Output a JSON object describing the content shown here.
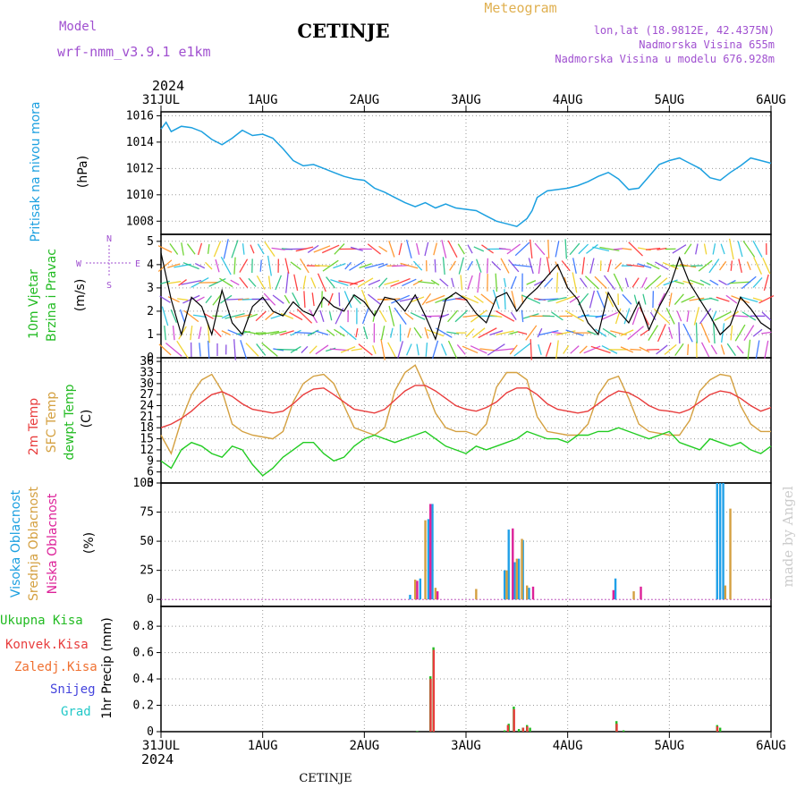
{
  "header": {
    "model_label": "Model",
    "model_name": "wrf-nmm_v3.9.1  e1km",
    "title": "CETINJE",
    "product": "Meteogram",
    "coords": "lon,lat (18.9812E, 42.4375N)",
    "elevation": "Nadmorska Visina 655m",
    "model_elevation": "Nadmorska Visina u modelu 676.928m",
    "year_top": "2024",
    "year_bottom": "2024",
    "footer": "CETINJE",
    "watermark": "made by Angel"
  },
  "x_axis": {
    "ticks": [
      "31JUL",
      "1AUG",
      "2AUG",
      "3AUG",
      "4AUG",
      "5AUG",
      "6AUG"
    ],
    "range_days": [
      0,
      6
    ]
  },
  "colors": {
    "pressure": "#1ca0e0",
    "temp2m": "#e83c3c",
    "sfc_temp": "#d4a040",
    "dewpt": "#22cc22",
    "high_cloud": "#20a0e8",
    "mid_cloud": "#d4a040",
    "low_cloud": "#dd2299",
    "total_precip": "#22bb22",
    "conv_precip": "#e83c3c",
    "freezing": "#f07030",
    "snow": "#4444dd",
    "hail": "#22c8c8",
    "ylabel_blue": "#1ca0e0",
    "ylabel_green": "#22bb22",
    "ylabel_red": "#e83c3c",
    "ylabel_orange": "#d4a040",
    "ylabel_magenta": "#dd2299",
    "header_purple": "#a050d0",
    "header_gold": "#e0b050"
  },
  "panels": {
    "pressure": {
      "ylabel": "Pritisak na nivou mora",
      "unit": "(hPa)",
      "ticks": [
        "1008",
        "1010",
        "1012",
        "1014",
        "1016"
      ]
    },
    "wind": {
      "ylabel1": "10m Vjetar",
      "ylabel2": "Brzina i Pravac",
      "unit": "(m/s)",
      "ticks": [
        "0",
        "1",
        "2",
        "3",
        "4",
        "5"
      ],
      "compass": {
        "n": "N",
        "s": "S",
        "w": "W",
        "e": "E"
      }
    },
    "temperature": {
      "ylabel1": "2m Temp",
      "ylabel2": "SFC Temp",
      "ylabel3": "dewpt Temp",
      "unit": "(C)",
      "ticks": [
        "3",
        "6",
        "9",
        "12",
        "15",
        "18",
        "21",
        "24",
        "27",
        "30",
        "33",
        "36"
      ]
    },
    "clouds": {
      "ylabel1": "Visoka Oblacnost",
      "ylabel2": "Srednja Oblacnost",
      "ylabel3": "Niska Oblacnost",
      "unit": "(%)",
      "ticks": [
        "0",
        "25",
        "50",
        "75",
        "100"
      ]
    },
    "precip": {
      "legend": [
        "Ukupna Kisa",
        "Konvek.Kisa",
        "Zaledj.Kisa",
        "Snijeg",
        "Grad"
      ],
      "ylabel": "1hr Precip (mm)",
      "ticks": [
        "0",
        "0.2",
        "0.4",
        "0.6",
        "0.8"
      ]
    }
  },
  "chart_data": [
    {
      "type": "line",
      "title": "Pritisak na nivou mora",
      "ylabel": "(hPa)",
      "ylim": [
        1007,
        1016.3
      ],
      "series": [
        {
          "name": "Pritisak na nivou mora",
          "x": [
            0,
            0.05,
            0.1,
            0.2,
            0.3,
            0.4,
            0.5,
            0.6,
            0.7,
            0.8,
            0.9,
            1.0,
            1.1,
            1.2,
            1.3,
            1.4,
            1.5,
            1.6,
            1.7,
            1.8,
            1.9,
            2.0,
            2.1,
            2.2,
            2.3,
            2.4,
            2.5,
            2.6,
            2.7,
            2.8,
            2.9,
            3.0,
            3.1,
            3.2,
            3.3,
            3.4,
            3.5,
            3.6,
            3.65,
            3.7,
            3.8,
            3.9,
            4.0,
            4.1,
            4.2,
            4.3,
            4.4,
            4.5,
            4.6,
            4.7,
            4.8,
            4.9,
            5.0,
            5.1,
            5.2,
            5.3,
            5.4,
            5.5,
            5.6,
            5.7,
            5.8,
            5.9,
            6.0
          ],
          "values": [
            1015.0,
            1015.5,
            1014.8,
            1015.2,
            1015.1,
            1014.8,
            1014.2,
            1013.8,
            1014.3,
            1014.9,
            1014.5,
            1014.6,
            1014.3,
            1013.5,
            1012.6,
            1012.2,
            1012.3,
            1012.0,
            1011.7,
            1011.4,
            1011.2,
            1011.1,
            1010.5,
            1010.2,
            1009.8,
            1009.4,
            1009.1,
            1009.4,
            1009.0,
            1009.3,
            1009.0,
            1008.9,
            1008.8,
            1008.4,
            1008.0,
            1007.8,
            1007.6,
            1008.2,
            1008.8,
            1009.8,
            1010.3,
            1010.4,
            1010.5,
            1010.7,
            1011.0,
            1011.4,
            1011.7,
            1011.2,
            1010.4,
            1010.5,
            1011.4,
            1012.3,
            1012.6,
            1012.8,
            1012.4,
            1012.0,
            1011.3,
            1011.1,
            1011.7,
            1012.2,
            1012.8,
            1012.6,
            1012.4
          ]
        }
      ]
    },
    {
      "type": "line",
      "title": "10m Vjetar Brzina i Pravac",
      "ylabel": "(m/s)",
      "ylim": [
        0,
        5.3
      ],
      "series": [
        {
          "name": "10m Vjetar",
          "x": [
            0,
            0.1,
            0.2,
            0.3,
            0.4,
            0.5,
            0.6,
            0.7,
            0.8,
            0.9,
            1.0,
            1.1,
            1.2,
            1.3,
            1.4,
            1.5,
            1.6,
            1.7,
            1.8,
            1.9,
            2.0,
            2.1,
            2.2,
            2.3,
            2.4,
            2.5,
            2.6,
            2.7,
            2.8,
            2.9,
            3.0,
            3.1,
            3.2,
            3.3,
            3.4,
            3.5,
            3.6,
            3.7,
            3.8,
            3.9,
            4.0,
            4.1,
            4.2,
            4.3,
            4.4,
            4.5,
            4.6,
            4.7,
            4.8,
            4.9,
            5.0,
            5.1,
            5.2,
            5.3,
            5.4,
            5.5,
            5.6,
            5.7,
            5.8,
            5.9,
            6.0
          ],
          "values": [
            4.5,
            2.5,
            1.0,
            2.6,
            2.2,
            1.0,
            2.9,
            1.5,
            1.0,
            2.2,
            2.6,
            2.0,
            1.8,
            2.4,
            2.0,
            1.8,
            2.6,
            2.2,
            2.0,
            2.7,
            2.4,
            1.8,
            2.6,
            2.5,
            2.0,
            2.7,
            1.8,
            0.8,
            2.5,
            2.8,
            2.5,
            1.9,
            1.5,
            2.6,
            2.8,
            2.0,
            2.6,
            3.0,
            3.5,
            4.0,
            3.0,
            2.5,
            1.5,
            1.0,
            2.8,
            2.0,
            1.5,
            2.4,
            1.2,
            2.2,
            3.0,
            4.3,
            3.2,
            2.5,
            1.8,
            1.0,
            1.4,
            2.6,
            2.1,
            1.5,
            1.2
          ]
        }
      ]
    },
    {
      "type": "line",
      "title": "2m Temp / SFC Temp / dewpt Temp",
      "ylabel": "(C)",
      "ylim": [
        3,
        37
      ],
      "series": [
        {
          "name": "2m Temp",
          "x": [
            0,
            0.1,
            0.2,
            0.3,
            0.4,
            0.5,
            0.6,
            0.7,
            0.8,
            0.9,
            1.0,
            1.1,
            1.2,
            1.3,
            1.4,
            1.5,
            1.6,
            1.7,
            1.8,
            1.9,
            2.0,
            2.1,
            2.2,
            2.3,
            2.4,
            2.5,
            2.6,
            2.7,
            2.8,
            2.9,
            3.0,
            3.1,
            3.2,
            3.3,
            3.4,
            3.5,
            3.6,
            3.7,
            3.8,
            3.9,
            4.0,
            4.1,
            4.2,
            4.3,
            4.4,
            4.5,
            4.6,
            4.7,
            4.8,
            4.9,
            5.0,
            5.1,
            5.2,
            5.3,
            5.4,
            5.5,
            5.6,
            5.7,
            5.8,
            5.9,
            6.0
          ],
          "values": [
            18,
            19,
            20.5,
            22.5,
            25,
            27,
            27.8,
            26.5,
            24.5,
            23,
            22.5,
            22,
            22.5,
            24.5,
            27,
            28.5,
            28.8,
            27,
            25,
            23,
            22.5,
            22,
            23,
            25.5,
            28,
            29.5,
            29.5,
            28,
            26,
            24,
            23,
            22.5,
            23.5,
            25,
            27.5,
            28.8,
            28.8,
            27,
            24.5,
            23,
            22.5,
            22,
            22.5,
            24.5,
            26.5,
            28,
            27.5,
            26,
            24,
            22.8,
            22.5,
            22,
            23,
            25,
            27,
            28,
            27.5,
            26,
            24,
            22.5,
            23.5
          ]
        },
        {
          "name": "SFC Temp",
          "x": [
            0,
            0.1,
            0.2,
            0.3,
            0.4,
            0.5,
            0.6,
            0.7,
            0.8,
            0.9,
            1.0,
            1.1,
            1.2,
            1.3,
            1.4,
            1.5,
            1.6,
            1.7,
            1.8,
            1.9,
            2.0,
            2.1,
            2.2,
            2.3,
            2.4,
            2.5,
            2.6,
            2.7,
            2.8,
            2.9,
            3.0,
            3.1,
            3.2,
            3.3,
            3.4,
            3.5,
            3.6,
            3.7,
            3.8,
            3.9,
            4.0,
            4.1,
            4.2,
            4.3,
            4.4,
            4.5,
            4.6,
            4.7,
            4.8,
            4.9,
            5.0,
            5.1,
            5.2,
            5.3,
            5.4,
            5.5,
            5.6,
            5.7,
            5.8,
            5.9,
            6.0
          ],
          "values": [
            16,
            11,
            20,
            27,
            31,
            32.5,
            28,
            19,
            17,
            16,
            15.5,
            15,
            17,
            25,
            30,
            32,
            32.5,
            30,
            24,
            18,
            17,
            16,
            18,
            28,
            33,
            35,
            29,
            22,
            18,
            17,
            17,
            16,
            19,
            29,
            33,
            33,
            31,
            21,
            17,
            16.5,
            16,
            16,
            19,
            27,
            31,
            32,
            26,
            19,
            17,
            16.5,
            16,
            16,
            20,
            28,
            31,
            32.5,
            32,
            24,
            19,
            17,
            17
          ]
        },
        {
          "name": "dewpt Temp",
          "x": [
            0,
            0.1,
            0.2,
            0.3,
            0.4,
            0.5,
            0.6,
            0.7,
            0.8,
            0.9,
            1.0,
            1.1,
            1.2,
            1.3,
            1.4,
            1.5,
            1.6,
            1.7,
            1.8,
            1.9,
            2.0,
            2.1,
            2.2,
            2.3,
            2.4,
            2.5,
            2.6,
            2.7,
            2.8,
            2.9,
            3.0,
            3.1,
            3.2,
            3.3,
            3.4,
            3.5,
            3.6,
            3.7,
            3.8,
            3.9,
            4.0,
            4.1,
            4.2,
            4.3,
            4.4,
            4.5,
            4.6,
            4.7,
            4.8,
            4.9,
            5.0,
            5.1,
            5.2,
            5.3,
            5.4,
            5.5,
            5.6,
            5.7,
            5.8,
            5.9,
            6.0
          ],
          "values": [
            9,
            7,
            12,
            14,
            13,
            11,
            10,
            13,
            12,
            8,
            5,
            7,
            10,
            12,
            14,
            14,
            11,
            9,
            10,
            13,
            15,
            16,
            15,
            14,
            15,
            16,
            17,
            15,
            13,
            12,
            11,
            13,
            12,
            13,
            14,
            15,
            17,
            16,
            15,
            15,
            14,
            16,
            16,
            17,
            17,
            18,
            17,
            16,
            15,
            16,
            17,
            14,
            13,
            12,
            15,
            14,
            13,
            14,
            12,
            11,
            13
          ]
        }
      ]
    },
    {
      "type": "bar",
      "title": "Visoka / Srednja / Niska Oblacnost",
      "ylabel": "(%)",
      "ylim": [
        0,
        100
      ],
      "series": [
        {
          "name": "Visoka Oblacnost",
          "x": [
            2.45,
            2.55,
            2.63,
            2.67,
            3.38,
            3.42,
            3.48,
            3.52,
            3.56,
            3.62,
            4.47,
            5.47,
            5.5,
            5.53
          ],
          "values": [
            4,
            18,
            69,
            82,
            25,
            60,
            32,
            35,
            51,
            10,
            18,
            100,
            100,
            100
          ]
        },
        {
          "name": "Srednja Oblacnost",
          "x": [
            2.5,
            2.6,
            2.7,
            3.1,
            3.4,
            3.5,
            3.55,
            3.6,
            4.65,
            5.55,
            5.6
          ],
          "values": [
            17,
            68,
            10,
            9,
            25,
            35,
            52,
            12,
            7,
            12,
            78
          ]
        },
        {
          "name": "Niska Oblacnost",
          "x": [
            2.52,
            2.65,
            2.72,
            3.46,
            3.66,
            4.45,
            4.72
          ],
          "values": [
            16,
            82,
            7,
            61,
            11,
            8,
            11
          ]
        }
      ]
    },
    {
      "type": "bar",
      "title": "1hr Precip",
      "ylabel": "(mm)",
      "ylim": [
        0,
        0.95
      ],
      "series": [
        {
          "name": "Ukupna Kisa",
          "x": [
            2.52,
            2.65,
            2.68,
            3.38,
            3.42,
            3.47,
            3.52,
            3.56,
            3.6,
            3.63,
            4.48,
            4.55,
            5.47,
            5.5
          ],
          "values": [
            0.005,
            0.42,
            0.64,
            0.01,
            0.06,
            0.19,
            0.02,
            0.03,
            0.05,
            0.03,
            0.08,
            0.01,
            0.05,
            0.03
          ]
        },
        {
          "name": "Konvek.Kisa",
          "x": [
            2.64,
            2.67,
            3.4,
            3.46,
            3.55,
            3.59,
            4.47,
            5.46
          ],
          "values": [
            0.4,
            0.62,
            0.05,
            0.17,
            0.03,
            0.04,
            0.06,
            0.04
          ]
        }
      ]
    }
  ]
}
